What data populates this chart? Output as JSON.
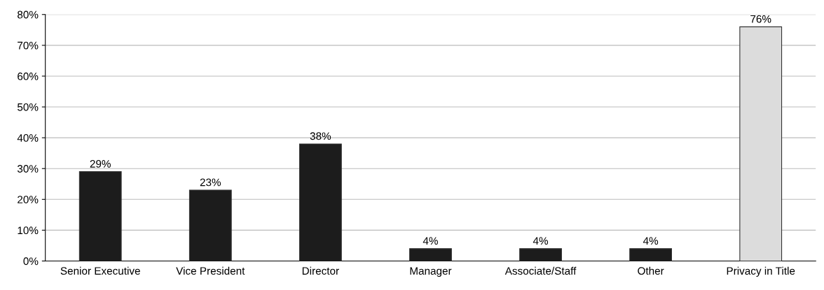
{
  "chart_data": {
    "type": "bar",
    "categories": [
      "Senior Executive",
      "Vice President",
      "Director",
      "Manager",
      "Associate/Staff",
      "Other",
      "Privacy in Title"
    ],
    "values": [
      29,
      23,
      38,
      4,
      4,
      4,
      76
    ],
    "value_labels": [
      "29%",
      "23%",
      "38%",
      "4%",
      "4%",
      "4%",
      "76%"
    ],
    "colors": [
      "#1c1c1c",
      "#1c1c1c",
      "#1c1c1c",
      "#1c1c1c",
      "#1c1c1c",
      "#1c1c1c",
      "#dcdcdc"
    ],
    "ylim": [
      0,
      80
    ],
    "yticks": [
      {
        "value": 0,
        "label": "0%"
      },
      {
        "value": 10,
        "label": "10%"
      },
      {
        "value": 20,
        "label": "20%"
      },
      {
        "value": 30,
        "label": "30%"
      },
      {
        "value": 40,
        "label": "40%"
      },
      {
        "value": 50,
        "label": "50%"
      },
      {
        "value": 60,
        "label": "60%"
      },
      {
        "value": 70,
        "label": "70%"
      },
      {
        "value": 80,
        "label": "80%"
      }
    ],
    "grid": "y"
  }
}
